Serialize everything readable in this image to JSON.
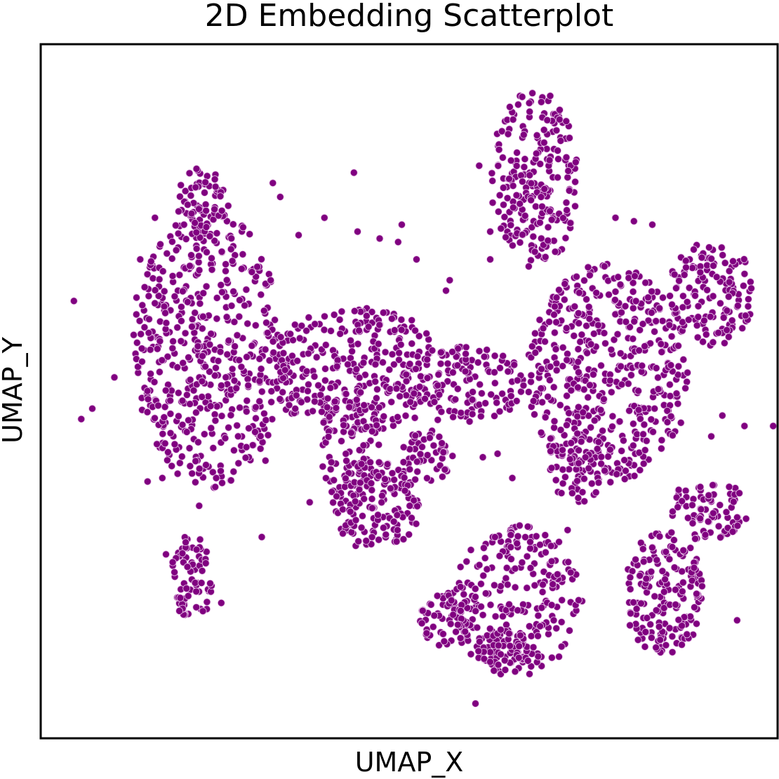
{
  "chart_data": {
    "type": "scatter",
    "title": "2D Embedding Scatterplot",
    "xlabel": "UMAP_X",
    "ylabel": "UMAP_Y",
    "xlim": [
      0,
      100
    ],
    "ylim": [
      0,
      100
    ],
    "grid": false,
    "legend": "none",
    "ticks_visible": false,
    "point_color": "#800080",
    "point_edge_color": "#e8c8e8",
    "clusters": [
      {
        "name": "upper-left-mass",
        "cx": 23,
        "cy": 56,
        "rx": 10.5,
        "ry": 20,
        "n": 520
      },
      {
        "name": "upper-left-arm",
        "cx": 22,
        "cy": 77,
        "rx": 3.5,
        "ry": 6,
        "n": 60
      },
      {
        "name": "center-band",
        "cx": 43,
        "cy": 53,
        "rx": 12.5,
        "ry": 9,
        "n": 300
      },
      {
        "name": "center-right-band",
        "cx": 57,
        "cy": 51,
        "rx": 9,
        "ry": 5.5,
        "n": 140
      },
      {
        "name": "center-lower-left",
        "cx": 42,
        "cy": 42,
        "rx": 4,
        "ry": 9,
        "n": 90
      },
      {
        "name": "center-lower-blob",
        "cx": 45.5,
        "cy": 33.5,
        "rx": 6,
        "ry": 6.5,
        "n": 150
      },
      {
        "name": "center-right-stub",
        "cx": 52.5,
        "cy": 40.5,
        "rx": 3.5,
        "ry": 4,
        "n": 50
      },
      {
        "name": "top-right-mass",
        "cx": 67,
        "cy": 80.5,
        "rx": 6,
        "ry": 13,
        "n": 230
      },
      {
        "name": "right-mass",
        "cx": 77,
        "cy": 52.5,
        "rx": 11,
        "ry": 16,
        "n": 480
      },
      {
        "name": "far-right-upper",
        "cx": 91,
        "cy": 64,
        "rx": 6,
        "ry": 7.5,
        "n": 140
      },
      {
        "name": "right-bridge",
        "cx": 73,
        "cy": 39,
        "rx": 4.5,
        "ry": 5,
        "n": 60
      },
      {
        "name": "lower-center",
        "cx": 64.5,
        "cy": 20,
        "rx": 9,
        "ry": 11,
        "n": 240
      },
      {
        "name": "lower-center-left",
        "cx": 55,
        "cy": 17,
        "rx": 3.5,
        "ry": 4,
        "n": 60
      },
      {
        "name": "lower-center-bottom",
        "cx": 63,
        "cy": 12.5,
        "rx": 4,
        "ry": 3.5,
        "n": 60
      },
      {
        "name": "lower-right",
        "cx": 84.5,
        "cy": 21,
        "rx": 5.5,
        "ry": 9,
        "n": 180
      },
      {
        "name": "lower-right-arm",
        "cx": 90.5,
        "cy": 33,
        "rx": 5.5,
        "ry": 4.5,
        "n": 80
      },
      {
        "name": "bottom-left-small",
        "cx": 20.5,
        "cy": 23,
        "rx": 2.8,
        "ry": 6.5,
        "n": 70
      }
    ],
    "outliers": [
      {
        "x": 4.5,
        "y": 63
      },
      {
        "x": 5.5,
        "y": 46
      },
      {
        "x": 7,
        "y": 47.5
      },
      {
        "x": 10,
        "y": 52
      },
      {
        "x": 13.5,
        "y": 69
      },
      {
        "x": 13,
        "y": 63.5
      },
      {
        "x": 15.5,
        "y": 75
      },
      {
        "x": 31.5,
        "y": 80
      },
      {
        "x": 32.5,
        "y": 78
      },
      {
        "x": 35,
        "y": 72.5
      },
      {
        "x": 38.5,
        "y": 75
      },
      {
        "x": 42.5,
        "y": 81.5
      },
      {
        "x": 43,
        "y": 73
      },
      {
        "x": 46,
        "y": 72
      },
      {
        "x": 48.5,
        "y": 71.5
      },
      {
        "x": 49,
        "y": 74
      },
      {
        "x": 51,
        "y": 69
      },
      {
        "x": 55,
        "y": 64.5
      },
      {
        "x": 55.5,
        "y": 66
      },
      {
        "x": 61,
        "y": 69
      },
      {
        "x": 59.5,
        "y": 82.5
      },
      {
        "x": 78,
        "y": 75
      },
      {
        "x": 80.5,
        "y": 74.5
      },
      {
        "x": 61,
        "y": 73
      },
      {
        "x": 60,
        "y": 40.5
      },
      {
        "x": 30,
        "y": 29
      },
      {
        "x": 41,
        "y": 29.5
      },
      {
        "x": 36.5,
        "y": 34
      },
      {
        "x": 59,
        "y": 5
      },
      {
        "x": 94.5,
        "y": 17
      },
      {
        "x": 89,
        "y": 16.5
      },
      {
        "x": 95.5,
        "y": 45
      },
      {
        "x": 91,
        "y": 43.5
      },
      {
        "x": 92.5,
        "y": 46.5
      },
      {
        "x": 100,
        "y": 45
      },
      {
        "x": 71.5,
        "y": 30
      },
      {
        "x": 14.5,
        "y": 37
      },
      {
        "x": 16.5,
        "y": 37.5
      },
      {
        "x": 21.5,
        "y": 33.5
      },
      {
        "x": 24.5,
        "y": 19.5
      },
      {
        "x": 17,
        "y": 26.5
      },
      {
        "x": 30.5,
        "y": 40
      },
      {
        "x": 62,
        "y": 41
      },
      {
        "x": 64,
        "y": 37.5
      },
      {
        "x": 69,
        "y": 60
      },
      {
        "x": 70,
        "y": 63.5
      },
      {
        "x": 76.5,
        "y": 68
      },
      {
        "x": 83,
        "y": 74
      }
    ]
  }
}
